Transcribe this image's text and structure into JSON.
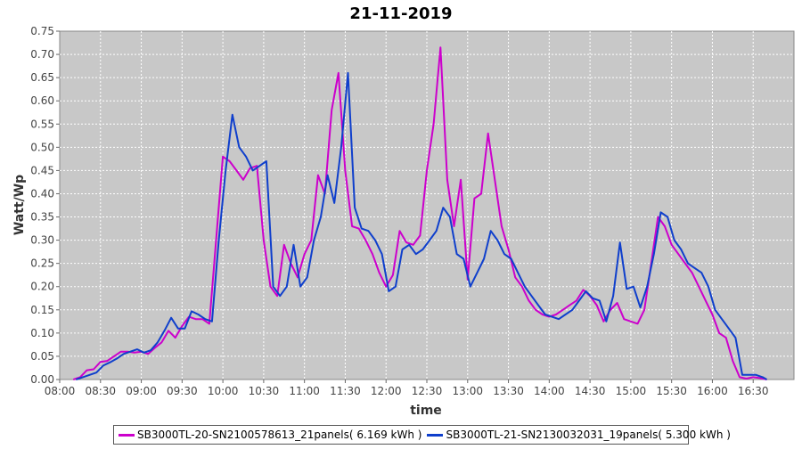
{
  "chart_data": {
    "type": "line",
    "title": "21-11-2019",
    "xlabel": "time",
    "ylabel": "Watt/Wp",
    "xlim": [
      "08:00",
      "17:00"
    ],
    "ylim": [
      0,
      0.75
    ],
    "x_ticks": [
      "08:00",
      "08:30",
      "09:00",
      "09:30",
      "10:00",
      "10:30",
      "11:00",
      "11:30",
      "12:00",
      "12:30",
      "13:00",
      "13:30",
      "14:00",
      "14:30",
      "15:00",
      "15:30",
      "16:00",
      "16:30"
    ],
    "y_ticks": [
      "0.00",
      "0.05",
      "0.10",
      "0.15",
      "0.20",
      "0.25",
      "0.30",
      "0.35",
      "0.40",
      "0.45",
      "0.50",
      "0.55",
      "0.60",
      "0.65",
      "0.70",
      "0.75"
    ],
    "grid": true,
    "legend_position": "bottom",
    "plot_background": "#c8c8c8",
    "series": [
      {
        "name": "SB3000TL-20-SN2100578613_21panels( 6.169 kWh )",
        "color": "#cc00cc",
        "points": [
          [
            "08:10",
            0.0
          ],
          [
            "08:15",
            0.005
          ],
          [
            "08:20",
            0.02
          ],
          [
            "08:25",
            0.022
          ],
          [
            "08:30",
            0.038
          ],
          [
            "08:35",
            0.04
          ],
          [
            "08:40",
            0.05
          ],
          [
            "08:45",
            0.06
          ],
          [
            "08:50",
            0.06
          ],
          [
            "08:55",
            0.058
          ],
          [
            "09:00",
            0.06
          ],
          [
            "09:05",
            0.055
          ],
          [
            "09:10",
            0.068
          ],
          [
            "09:15",
            0.08
          ],
          [
            "09:20",
            0.105
          ],
          [
            "09:25",
            0.09
          ],
          [
            "09:30",
            0.115
          ],
          [
            "09:35",
            0.135
          ],
          [
            "09:40",
            0.13
          ],
          [
            "09:45",
            0.13
          ],
          [
            "09:50",
            0.12
          ],
          [
            "09:55",
            0.3
          ],
          [
            "10:00",
            0.48
          ],
          [
            "10:05",
            0.47
          ],
          [
            "10:10",
            0.45
          ],
          [
            "10:15",
            0.43
          ],
          [
            "10:20",
            0.455
          ],
          [
            "10:25",
            0.46
          ],
          [
            "10:30",
            0.3
          ],
          [
            "10:35",
            0.2
          ],
          [
            "10:40",
            0.18
          ],
          [
            "10:45",
            0.29
          ],
          [
            "10:50",
            0.25
          ],
          [
            "10:55",
            0.22
          ],
          [
            "11:00",
            0.27
          ],
          [
            "11:05",
            0.3
          ],
          [
            "11:10",
            0.44
          ],
          [
            "11:15",
            0.4
          ],
          [
            "11:20",
            0.58
          ],
          [
            "11:25",
            0.66
          ],
          [
            "11:30",
            0.45
          ],
          [
            "11:35",
            0.33
          ],
          [
            "11:40",
            0.325
          ],
          [
            "11:45",
            0.3
          ],
          [
            "11:50",
            0.27
          ],
          [
            "11:55",
            0.23
          ],
          [
            "12:00",
            0.2
          ],
          [
            "12:05",
            0.225
          ],
          [
            "12:10",
            0.32
          ],
          [
            "12:15",
            0.295
          ],
          [
            "12:20",
            0.29
          ],
          [
            "12:25",
            0.31
          ],
          [
            "12:30",
            0.45
          ],
          [
            "12:35",
            0.55
          ],
          [
            "12:40",
            0.715
          ],
          [
            "12:45",
            0.43
          ],
          [
            "12:50",
            0.33
          ],
          [
            "12:55",
            0.43
          ],
          [
            "13:00",
            0.215
          ],
          [
            "13:05",
            0.39
          ],
          [
            "13:10",
            0.4
          ],
          [
            "13:15",
            0.53
          ],
          [
            "13:20",
            0.43
          ],
          [
            "13:25",
            0.33
          ],
          [
            "13:30",
            0.28
          ],
          [
            "13:35",
            0.22
          ],
          [
            "13:40",
            0.2
          ],
          [
            "13:45",
            0.17
          ],
          [
            "13:50",
            0.15
          ],
          [
            "13:55",
            0.14
          ],
          [
            "14:00",
            0.135
          ],
          [
            "14:05",
            0.14
          ],
          [
            "14:10",
            0.15
          ],
          [
            "14:15",
            0.16
          ],
          [
            "14:20",
            0.17
          ],
          [
            "14:25",
            0.193
          ],
          [
            "14:30",
            0.18
          ],
          [
            "14:35",
            0.16
          ],
          [
            "14:40",
            0.125
          ],
          [
            "14:45",
            0.15
          ],
          [
            "14:50",
            0.165
          ],
          [
            "14:55",
            0.13
          ],
          [
            "15:00",
            0.125
          ],
          [
            "15:05",
            0.12
          ],
          [
            "15:10",
            0.15
          ],
          [
            "15:15",
            0.25
          ],
          [
            "15:20",
            0.35
          ],
          [
            "15:25",
            0.33
          ],
          [
            "15:30",
            0.29
          ],
          [
            "15:35",
            0.27
          ],
          [
            "15:40",
            0.25
          ],
          [
            "15:45",
            0.23
          ],
          [
            "15:50",
            0.2
          ],
          [
            "15:55",
            0.17
          ],
          [
            "16:00",
            0.14
          ],
          [
            "16:05",
            0.1
          ],
          [
            "16:10",
            0.09
          ],
          [
            "16:15",
            0.04
          ],
          [
            "16:20",
            0.005
          ],
          [
            "16:25",
            0.002
          ],
          [
            "16:30",
            0.005
          ],
          [
            "16:35",
            0.003
          ],
          [
            "16:40",
            0.0
          ]
        ]
      },
      {
        "name": "SB3000TL-21-SN2130032031_19panels( 5.300 kWh )",
        "color": "#0f3fcc",
        "points": [
          [
            "08:12",
            0.0
          ],
          [
            "08:17",
            0.005
          ],
          [
            "08:22",
            0.01
          ],
          [
            "08:27",
            0.015
          ],
          [
            "08:32",
            0.03
          ],
          [
            "08:37",
            0.037
          ],
          [
            "08:42",
            0.045
          ],
          [
            "08:47",
            0.055
          ],
          [
            "08:52",
            0.06
          ],
          [
            "08:57",
            0.065
          ],
          [
            "09:02",
            0.058
          ],
          [
            "09:07",
            0.063
          ],
          [
            "09:12",
            0.08
          ],
          [
            "09:17",
            0.105
          ],
          [
            "09:22",
            0.133
          ],
          [
            "09:27",
            0.11
          ],
          [
            "09:32",
            0.11
          ],
          [
            "09:37",
            0.147
          ],
          [
            "09:42",
            0.14
          ],
          [
            "09:47",
            0.13
          ],
          [
            "09:52",
            0.125
          ],
          [
            "09:57",
            0.3
          ],
          [
            "10:02",
            0.45
          ],
          [
            "10:07",
            0.57
          ],
          [
            "10:12",
            0.5
          ],
          [
            "10:17",
            0.48
          ],
          [
            "10:22",
            0.45
          ],
          [
            "10:27",
            0.46
          ],
          [
            "10:32",
            0.47
          ],
          [
            "10:37",
            0.2
          ],
          [
            "10:42",
            0.18
          ],
          [
            "10:47",
            0.2
          ],
          [
            "10:52",
            0.29
          ],
          [
            "10:57",
            0.2
          ],
          [
            "11:02",
            0.22
          ],
          [
            "11:07",
            0.3
          ],
          [
            "11:12",
            0.35
          ],
          [
            "11:17",
            0.44
          ],
          [
            "11:22",
            0.38
          ],
          [
            "11:27",
            0.5
          ],
          [
            "11:32",
            0.66
          ],
          [
            "11:37",
            0.37
          ],
          [
            "11:42",
            0.325
          ],
          [
            "11:47",
            0.32
          ],
          [
            "11:52",
            0.3
          ],
          [
            "11:57",
            0.27
          ],
          [
            "12:02",
            0.19
          ],
          [
            "12:07",
            0.2
          ],
          [
            "12:12",
            0.28
          ],
          [
            "12:17",
            0.29
          ],
          [
            "12:22",
            0.27
          ],
          [
            "12:27",
            0.28
          ],
          [
            "12:32",
            0.3
          ],
          [
            "12:37",
            0.32
          ],
          [
            "12:42",
            0.37
          ],
          [
            "12:47",
            0.35
          ],
          [
            "12:52",
            0.27
          ],
          [
            "12:57",
            0.26
          ],
          [
            "13:02",
            0.2
          ],
          [
            "13:07",
            0.23
          ],
          [
            "13:12",
            0.26
          ],
          [
            "13:17",
            0.32
          ],
          [
            "13:22",
            0.3
          ],
          [
            "13:27",
            0.27
          ],
          [
            "13:32",
            0.26
          ],
          [
            "13:37",
            0.23
          ],
          [
            "13:42",
            0.2
          ],
          [
            "13:47",
            0.18
          ],
          [
            "13:52",
            0.16
          ],
          [
            "13:57",
            0.14
          ],
          [
            "14:02",
            0.135
          ],
          [
            "14:07",
            0.13
          ],
          [
            "14:12",
            0.14
          ],
          [
            "14:17",
            0.15
          ],
          [
            "14:22",
            0.17
          ],
          [
            "14:27",
            0.19
          ],
          [
            "14:32",
            0.175
          ],
          [
            "14:37",
            0.17
          ],
          [
            "14:42",
            0.125
          ],
          [
            "14:47",
            0.18
          ],
          [
            "14:52",
            0.295
          ],
          [
            "14:57",
            0.195
          ],
          [
            "15:02",
            0.2
          ],
          [
            "15:07",
            0.155
          ],
          [
            "15:12",
            0.2
          ],
          [
            "15:17",
            0.27
          ],
          [
            "15:22",
            0.36
          ],
          [
            "15:27",
            0.35
          ],
          [
            "15:32",
            0.3
          ],
          [
            "15:37",
            0.28
          ],
          [
            "15:42",
            0.25
          ],
          [
            "15:47",
            0.24
          ],
          [
            "15:52",
            0.23
          ],
          [
            "15:57",
            0.2
          ],
          [
            "16:02",
            0.15
          ],
          [
            "16:07",
            0.13
          ],
          [
            "16:12",
            0.11
          ],
          [
            "16:17",
            0.09
          ],
          [
            "16:22",
            0.01
          ],
          [
            "16:27",
            0.01
          ],
          [
            "16:32",
            0.01
          ],
          [
            "16:37",
            0.005
          ],
          [
            "16:40",
            0.0
          ]
        ]
      }
    ]
  }
}
